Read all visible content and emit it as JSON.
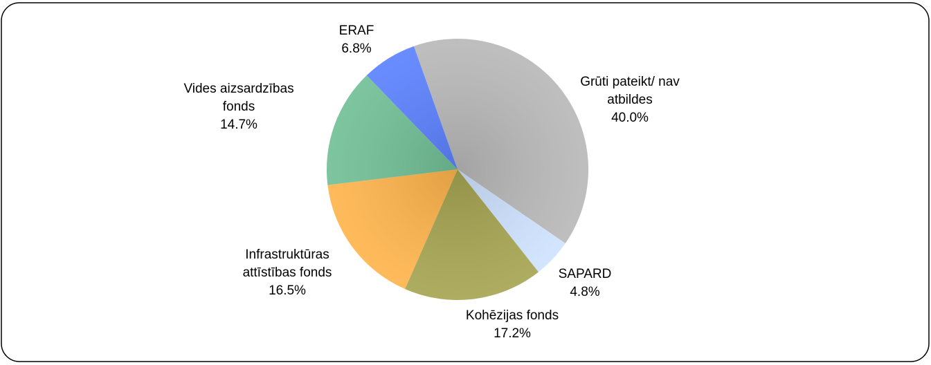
{
  "chart_data": {
    "type": "pie",
    "categories": [
      "Grūti pateikt/ nav atbildes",
      "SAPARD",
      "Kohēzijas fonds",
      "Infrastruktūras attīstības fonds",
      "Vides aizsardzības fonds",
      "ERAF"
    ],
    "values": [
      40.0,
      4.8,
      17.2,
      16.5,
      14.7,
      6.8
    ],
    "value_labels": [
      "40.0%",
      "4.8%",
      "17.2%",
      "16.5%",
      "14.7%",
      "6.8%"
    ],
    "colors": [
      "#b9b9b9",
      "#cfe3ff",
      "#a6a552",
      "#ffb54d",
      "#72c097",
      "#5c82ff"
    ]
  }
}
